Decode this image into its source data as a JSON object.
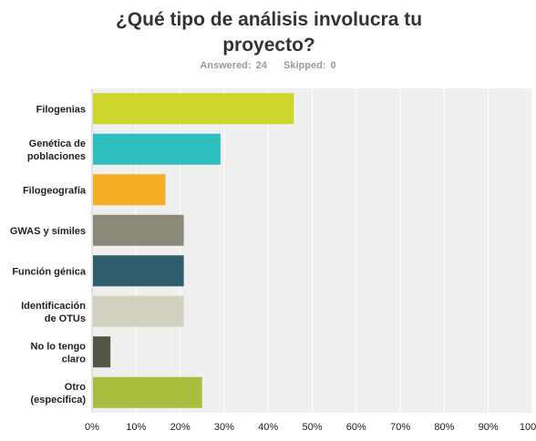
{
  "header": {
    "title": "¿Qué tipo de análisis involucra tu proyecto?",
    "answered_label": "Answered:",
    "answered_value": "24",
    "skipped_label": "Skipped:",
    "skipped_value": "0"
  },
  "colors": {
    "plot_background": "#efefef",
    "gridline": "#ffffff",
    "axis": "#cfcfcf"
  },
  "chart_data": {
    "type": "bar",
    "orientation": "horizontal",
    "title": "¿Qué tipo de análisis involucra tu proyecto?",
    "categories": [
      [
        "Filogenias"
      ],
      [
        "Genética de",
        "poblaciones"
      ],
      [
        "Filogeografía"
      ],
      [
        "GWAS y símiles"
      ],
      [
        "Función génica"
      ],
      [
        "Identificación",
        "de OTUs"
      ],
      [
        "No lo tengo",
        "claro"
      ],
      [
        "Otro",
        "(especifica)"
      ]
    ],
    "values": [
      45.83,
      29.17,
      16.67,
      20.83,
      20.83,
      20.83,
      4.17,
      25.0
    ],
    "bar_colors": [
      "#cdd52a",
      "#2fbfbf",
      "#f5ae25",
      "#8b8a78",
      "#2e5e6b",
      "#d1d0c1",
      "#555547",
      "#a9be3e"
    ],
    "xlim": [
      0,
      100
    ],
    "xticks": [
      "0%",
      "10%",
      "20%",
      "30%",
      "40%",
      "50%",
      "60%",
      "70%",
      "80%",
      "90%",
      "100%"
    ],
    "grid": true,
    "legend": "none"
  }
}
